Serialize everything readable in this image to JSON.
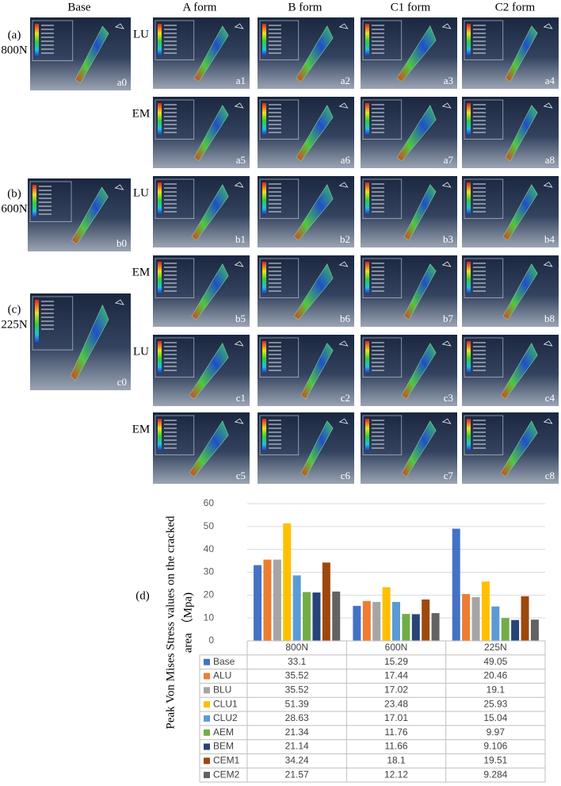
{
  "figure": {
    "column_headers": [
      "Base",
      "A form",
      "B form",
      "C1 form",
      "C2 form"
    ],
    "groups": [
      {
        "label": "(a)",
        "load": "800N",
        "base_panel": "a0",
        "rows": [
          {
            "label": "LU",
            "panels": [
              "a1",
              "a2",
              "a3",
              "a4"
            ]
          },
          {
            "label": "EM",
            "panels": [
              "a5",
              "a6",
              "a7",
              "a8"
            ]
          }
        ]
      },
      {
        "label": "(b)",
        "load": "600N",
        "base_panel": "b0",
        "rows": [
          {
            "label": "LU",
            "panels": [
              "b1",
              "b2",
              "b3",
              "b4"
            ]
          },
          {
            "label": "EM",
            "panels": [
              "b5",
              "b6",
              "b7",
              "b8"
            ]
          }
        ]
      },
      {
        "label": "(c)",
        "load": "225N",
        "base_panel": "c0",
        "rows": [
          {
            "label": "LU",
            "panels": [
              "c1",
              "c2",
              "c3",
              "c4"
            ]
          },
          {
            "label": "EM",
            "panels": [
              "c5",
              "c6",
              "c7",
              "c8"
            ]
          }
        ]
      }
    ]
  },
  "chart_data": {
    "type": "bar",
    "panel_label": "(d)",
    "ylabel": [
      "Peak Von Mises Stress values on the cracked",
      "area （Mpa)"
    ],
    "categories": [
      "800N",
      "600N",
      "225N"
    ],
    "ylim": [
      0,
      60
    ],
    "yticks": [
      0,
      10,
      20,
      30,
      40,
      50,
      60
    ],
    "grid": true,
    "series": [
      {
        "name": "Base",
        "color": "#4472c4",
        "values": [
          33.1,
          15.29,
          49.05
        ]
      },
      {
        "name": "ALU",
        "color": "#ed7d31",
        "values": [
          35.52,
          17.44,
          20.46
        ]
      },
      {
        "name": "BLU",
        "color": "#a5a5a5",
        "values": [
          35.52,
          17.02,
          19.1
        ]
      },
      {
        "name": "CLU1",
        "color": "#ffc000",
        "values": [
          51.39,
          23.48,
          25.93
        ]
      },
      {
        "name": "CLU2",
        "color": "#5b9bd5",
        "values": [
          28.63,
          17.01,
          15.04
        ]
      },
      {
        "name": "AEM",
        "color": "#70ad47",
        "values": [
          21.34,
          11.76,
          9.97
        ]
      },
      {
        "name": "BEM",
        "color": "#264478",
        "values": [
          21.14,
          11.66,
          9.106
        ]
      },
      {
        "name": "CEM1",
        "color": "#9e480e",
        "values": [
          34.24,
          18.1,
          19.51
        ]
      },
      {
        "name": "CEM2",
        "color": "#636363",
        "values": [
          21.57,
          12.12,
          9.284
        ]
      }
    ]
  }
}
